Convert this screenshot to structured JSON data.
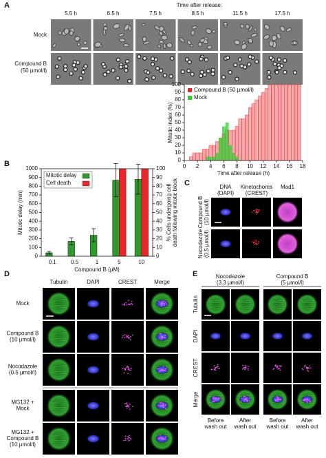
{
  "panel_labels": [
    "A",
    "B",
    "C",
    "D",
    "E"
  ],
  "panel_a": {
    "heading": "Time after release:",
    "times": [
      "5.5 h",
      "6.5 h",
      "7.5 h",
      "8.5 h",
      "11.5 h",
      "17.5 h"
    ],
    "rows": [
      [
        "Mock"
      ],
      [
        "Compound B",
        "(50 µmol/l)"
      ]
    ]
  },
  "chart_data": [
    {
      "type": "bar",
      "xlabel": "Time after release (h)",
      "ylabel": "Mitotic index (%)",
      "x": [
        1,
        1.5,
        2,
        2.5,
        3,
        3.5,
        4,
        4.5,
        5,
        5.5,
        6,
        6.5,
        7,
        7.5,
        8,
        8.5,
        9,
        9.5,
        10,
        10.5,
        11,
        11.5,
        12,
        12.5,
        13,
        13.5,
        14,
        14.5,
        15,
        15.5,
        16,
        16.5,
        17,
        17.5
      ],
      "series": [
        {
          "name": "Compound B (50 µmol/l)",
          "color": "#e8262b",
          "values": [
            5,
            10,
            10,
            10,
            15,
            15,
            20,
            20,
            25,
            30,
            35,
            40,
            40,
            40,
            45,
            55,
            55,
            60,
            70,
            75,
            80,
            85,
            90,
            95,
            100,
            100,
            100,
            100,
            100,
            100,
            100,
            100,
            100,
            100
          ]
        },
        {
          "name": "Mock",
          "color": "#33cc33",
          "values": [
            0,
            0,
            0,
            0,
            0,
            5,
            5,
            5,
            10,
            30,
            45,
            50,
            20,
            10,
            5,
            0,
            0,
            0,
            0,
            0,
            0,
            0,
            0,
            0,
            0,
            0,
            0,
            0,
            0,
            0,
            0,
            0,
            0,
            0
          ]
        }
      ],
      "xlim": [
        0,
        18
      ],
      "xticks": [
        0,
        2,
        4,
        6,
        8,
        10,
        12,
        14,
        16,
        18
      ],
      "ylim": [
        0,
        100
      ],
      "yticks": [
        0,
        10,
        20,
        30,
        40,
        50,
        60,
        70,
        80,
        90,
        100
      ],
      "legend": "top-left"
    },
    {
      "type": "grouped-bar",
      "xlabel": "Compound B (µM)",
      "ylabel": "Mitotic delay (min)",
      "y2label": [
        "% Cells undergoing cell",
        "death following mitotic block"
      ],
      "categories": [
        "0.1",
        "0.5",
        "1",
        "5",
        "10"
      ],
      "series": [
        {
          "name": "Mitotic delay",
          "color": "#2e9a2e",
          "values": [
            40,
            170,
            240,
            870,
            880
          ],
          "errors": [
            15,
            40,
            75,
            190,
            170
          ]
        },
        {
          "name": "Cell death",
          "color": "#e8262b",
          "axis": "y2",
          "values": [
            null,
            null,
            null,
            100,
            100
          ]
        }
      ],
      "ylim": [
        0,
        1000
      ],
      "yticks": [
        0,
        100,
        200,
        300,
        400,
        500,
        600,
        700,
        800,
        900,
        1000
      ],
      "y2lim": [
        0,
        100
      ],
      "y2ticks": [
        0,
        10,
        20,
        30,
        40,
        50,
        60,
        70,
        80,
        90,
        100
      ],
      "legend": "top-left"
    }
  ],
  "panel_c": {
    "columns": [
      [
        "DNA",
        "(DAPI)"
      ],
      [
        "Kinetochores",
        "(CREST)"
      ],
      [
        "Mad1"
      ]
    ],
    "rows": [
      [
        "Compound B",
        "(10 µmol/l)"
      ],
      [
        "Nocodazole",
        "(0.5 µmol/l)"
      ]
    ]
  },
  "panel_d": {
    "columns": [
      "Tubulin",
      "DAPI",
      "CREST",
      "Merge"
    ],
    "rows": [
      [
        "Mock"
      ],
      [
        "Compound B",
        "(10 µmol/l)"
      ],
      [
        "Nocodazole",
        "(0.5 µmol/l)"
      ],
      [
        "MG132 +",
        "Mock"
      ],
      [
        "MG132 +",
        "Compound B",
        "(10 µmol/l)"
      ]
    ]
  },
  "panel_e": {
    "groups": [
      [
        "Nocodazole",
        "(3.3 µmol/l)"
      ],
      [
        "Compound B",
        "(5 µmol/l)"
      ]
    ],
    "rows": [
      "Tubulin",
      "DAPI",
      "CREST",
      "Merge"
    ],
    "columns": [
      [
        "Before",
        "wash out"
      ],
      [
        "After",
        "wash out"
      ],
      [
        "Before",
        "wash out"
      ],
      [
        "After",
        "wash out"
      ]
    ]
  }
}
